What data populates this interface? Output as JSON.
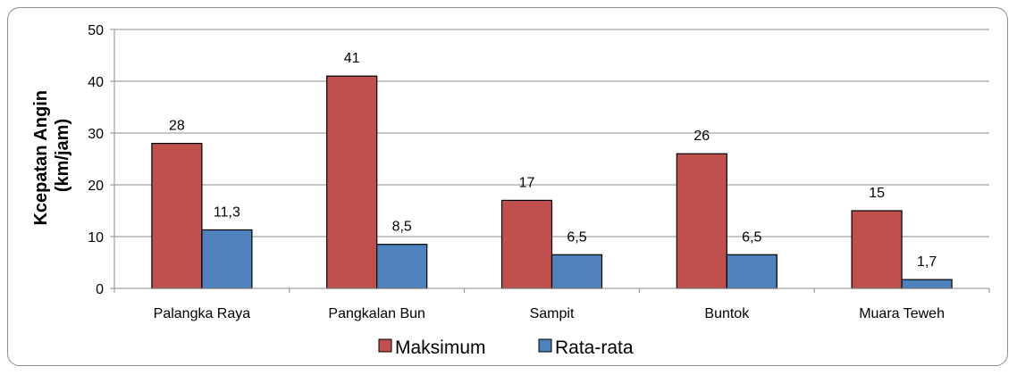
{
  "chart_data": {
    "type": "bar",
    "categories": [
      "Palangka Raya",
      "Pangkalan Bun",
      "Sampit",
      "Buntok",
      "Muara Teweh"
    ],
    "series": [
      {
        "name": "Maksimum",
        "values": [
          28,
          41,
          17,
          26,
          15
        ],
        "labels": [
          "28",
          "41",
          "17",
          "26",
          "15"
        ],
        "color": "#c0504d"
      },
      {
        "name": "Rata-rata",
        "values": [
          11.3,
          8.5,
          6.5,
          6.5,
          1.7
        ],
        "labels": [
          "11,3",
          "8,5",
          "6,5",
          "6,5",
          "1,7"
        ],
        "color": "#4f81bd"
      }
    ],
    "ylabel_lines": [
      "Kcepatan Angin",
      "(km/jam)"
    ],
    "ylim": [
      0,
      50
    ],
    "yticks": [
      0,
      10,
      20,
      30,
      40,
      50
    ],
    "ytick_labels": [
      "0",
      "10",
      "20",
      "30",
      "40",
      "50"
    ],
    "grid": true,
    "legend_position": "bottom"
  }
}
